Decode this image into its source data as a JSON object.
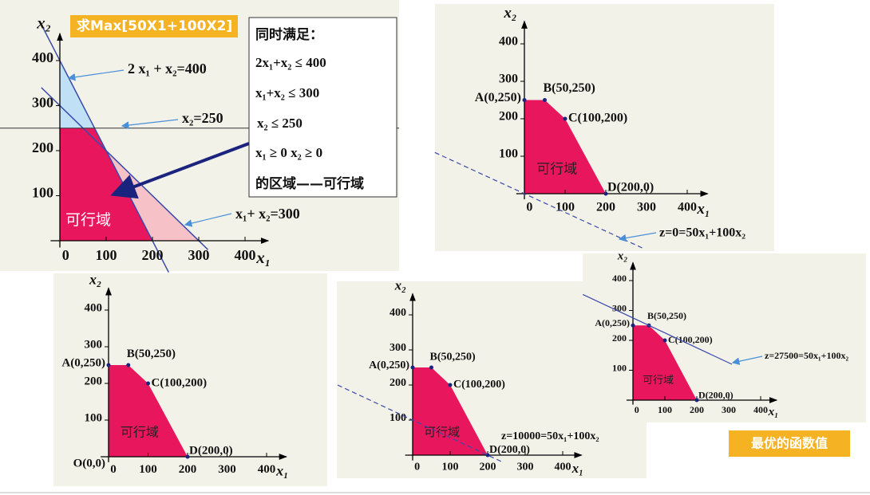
{
  "title_box": "求Max[50X1+100X2]",
  "constraints": {
    "heading": "同时满足：",
    "lines": [
      "2x₁+x₂ ≤ 400",
      "x₁+x₂ ≤ 300",
      "x₂ ≤ 250",
      "x₁ ≥ 0   x₂ ≥ 0"
    ],
    "footer": "的区域——可行域"
  },
  "panels": [
    {
      "x_axis_label": "x₁",
      "y_axis_label": "x₂",
      "x_ticks": [
        0,
        100,
        200,
        300,
        400
      ],
      "y_ticks": [
        100,
        200,
        300,
        400
      ],
      "region_label": "可行域",
      "line_labels": [
        "2 x₁ + x₂=400",
        "x₂=250",
        "x₁+ x₂=300"
      ]
    },
    {
      "x_axis_label": "x₁",
      "y_axis_label": "x₂",
      "x_ticks": [
        0,
        100,
        200,
        300,
        400
      ],
      "y_ticks": [
        100,
        200,
        300,
        400
      ],
      "region_label": "可行域",
      "points": [
        "A(0,250)",
        "B(50,250)",
        "C(100,200)",
        "D(200,0)"
      ],
      "objective_label": "z=0=50x₁+100x₂"
    },
    {
      "x_axis_label": "x₁",
      "y_axis_label": "x₂",
      "x_ticks": [
        0,
        100,
        200,
        300,
        400
      ],
      "y_ticks": [
        100,
        200,
        300,
        400
      ],
      "region_label": "可行域",
      "points": [
        "A(0,250)",
        "B(50,250)",
        "C(100,200)",
        "D(200,0)",
        "O(0,0)"
      ]
    },
    {
      "x_axis_label": "x₁",
      "y_axis_label": "x₂",
      "x_ticks": [
        0,
        100,
        200,
        300,
        400
      ],
      "y_ticks": [
        100,
        200,
        300,
        400
      ],
      "region_label": "可行域",
      "points": [
        "A(0,250)",
        "B(50,250)",
        "C(100,200)",
        "D(200,0)"
      ],
      "objective_label": "z=10000=50x₁+100x₂"
    },
    {
      "x_axis_label": "x₁",
      "y_axis_label": "x₂",
      "x_ticks": [
        0,
        100,
        200,
        300,
        400
      ],
      "y_ticks": [
        100,
        200,
        300,
        400
      ],
      "region_label": "可行域",
      "points": [
        "A(0,250)",
        "B(50,250)",
        "C(100,200)",
        "D(200,0)"
      ],
      "objective_label": "z=27500=50x₁+100x₂"
    }
  ],
  "best_value_box": "最优的函数值"
}
